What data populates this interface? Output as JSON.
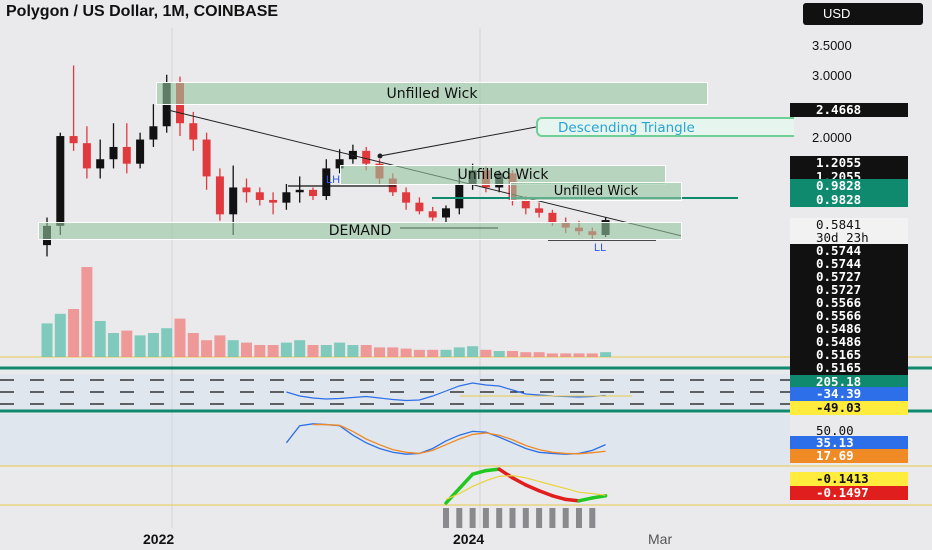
{
  "header": {
    "title": "Polygon / US Dollar, 1M, COINBASE",
    "currency_button": "USD"
  },
  "price_axis": {
    "labels": [
      "3.5000",
      "3.0000",
      "2.0000"
    ]
  },
  "price_tags": [
    {
      "text": "2.4668",
      "style": "dark"
    },
    {
      "text": "1.2055",
      "style": "dark"
    },
    {
      "text": "1.2055",
      "style": "dark"
    },
    {
      "text": "0.9828",
      "style": "teal"
    },
    {
      "text": "0.9828",
      "style": "teal"
    },
    {
      "text": "0.5841",
      "style": "light"
    },
    {
      "text": "30d 23h",
      "style": "light"
    },
    {
      "text": "0.5744",
      "style": "dark"
    },
    {
      "text": "0.5744",
      "style": "dark"
    },
    {
      "text": "0.5727",
      "style": "dark"
    },
    {
      "text": "0.5727",
      "style": "dark"
    },
    {
      "text": "0.5566",
      "style": "dark"
    },
    {
      "text": "0.5566",
      "style": "dark"
    },
    {
      "text": "0.5486",
      "style": "dark"
    },
    {
      "text": "0.5486",
      "style": "dark"
    },
    {
      "text": "0.5165",
      "style": "dark"
    },
    {
      "text": "0.5165",
      "style": "dark"
    }
  ],
  "indicator_tags": [
    {
      "text": "205.18",
      "style": "teal"
    },
    {
      "text": "-34.39",
      "style": "blue"
    },
    {
      "text": "-49.03",
      "style": "yellow"
    },
    {
      "text": "50.00",
      "style": "plain"
    },
    {
      "text": "35.13",
      "style": "blue"
    },
    {
      "text": "17.69",
      "style": "orange"
    },
    {
      "text": "-0.1413",
      "style": "yellow"
    },
    {
      "text": "-0.1497",
      "style": "red"
    }
  ],
  "annotations": {
    "zone_1": "Unfilled Wick",
    "zone_2": "Unfilled Wick",
    "zone_3": "Unfilled Wick",
    "demand_zone": "DEMAND",
    "pattern_callout": "Descending Triangle",
    "marker_lh": "LH",
    "marker_ll": "LL"
  },
  "time_axis": {
    "labels": [
      "2022",
      "2024",
      "Mar"
    ]
  },
  "colors": {
    "bull_candle": "#111111",
    "bear_candle": "#e03a3e",
    "zone_fill": "#94c4a0",
    "volume_up": "#6cc4b4",
    "volume_down": "#f08a8a",
    "teal_line": "#0f8a6e"
  },
  "chart_data": {
    "type": "candlestick",
    "interval": "1M",
    "yscale": "log",
    "series": [
      {
        "name": "price",
        "ohlc": [
          [
            0.45,
            0.6,
            0.4,
            0.55
          ],
          [
            0.55,
            1.45,
            0.5,
            1.4
          ],
          [
            1.4,
            2.92,
            1.2,
            1.3
          ],
          [
            1.3,
            1.55,
            0.9,
            1.0
          ],
          [
            1.0,
            1.35,
            0.9,
            1.1
          ],
          [
            1.1,
            1.6,
            1.0,
            1.25
          ],
          [
            1.25,
            1.6,
            0.95,
            1.05
          ],
          [
            1.05,
            1.45,
            1.0,
            1.35
          ],
          [
            1.35,
            1.95,
            1.25,
            1.55
          ],
          [
            1.55,
            2.65,
            1.45,
            2.45
          ],
          [
            2.45,
            2.6,
            1.4,
            1.6
          ],
          [
            1.6,
            1.8,
            1.2,
            1.35
          ],
          [
            1.35,
            1.45,
            0.8,
            0.92
          ],
          [
            0.92,
            1.0,
            0.58,
            0.62
          ],
          [
            0.62,
            1.03,
            0.5,
            0.82
          ],
          [
            0.82,
            0.9,
            0.7,
            0.78
          ],
          [
            0.78,
            0.82,
            0.68,
            0.72
          ],
          [
            0.72,
            0.78,
            0.62,
            0.7
          ],
          [
            0.7,
            0.85,
            0.65,
            0.78
          ],
          [
            0.78,
            0.92,
            0.7,
            0.8
          ],
          [
            0.8,
            0.82,
            0.72,
            0.75
          ],
          [
            0.75,
            1.1,
            0.72,
            1.0
          ],
          [
            1.0,
            1.22,
            0.95,
            1.1
          ],
          [
            1.1,
            1.28,
            1.05,
            1.2
          ],
          [
            1.2,
            1.25,
            0.98,
            1.05
          ],
          [
            1.05,
            1.1,
            0.85,
            0.9
          ],
          [
            0.9,
            0.95,
            0.75,
            0.78
          ],
          [
            0.78,
            0.82,
            0.65,
            0.7
          ],
          [
            0.7,
            0.74,
            0.62,
            0.64
          ],
          [
            0.64,
            0.67,
            0.58,
            0.6
          ],
          [
            0.6,
            0.68,
            0.57,
            0.66
          ],
          [
            0.66,
            0.94,
            0.62,
            0.85
          ],
          [
            0.85,
            1.05,
            0.8,
            0.98
          ],
          [
            0.98,
            1.02,
            0.78,
            0.82
          ],
          [
            0.82,
            0.98,
            0.78,
            0.95
          ],
          [
            0.95,
            0.98,
            0.68,
            0.72
          ],
          [
            0.72,
            0.75,
            0.62,
            0.66
          ],
          [
            0.66,
            0.7,
            0.6,
            0.63
          ],
          [
            0.63,
            0.65,
            0.55,
            0.57
          ],
          [
            0.57,
            0.6,
            0.51,
            0.54
          ],
          [
            0.54,
            0.58,
            0.5,
            0.52
          ],
          [
            0.52,
            0.54,
            0.48,
            0.5
          ],
          [
            0.5,
            0.6,
            0.49,
            0.5841
          ]
        ]
      },
      {
        "name": "volume",
        "values": [
          28,
          36,
          40,
          75,
          30,
          20,
          22,
          18,
          20,
          24,
          32,
          20,
          14,
          18,
          14,
          12,
          10,
          10,
          12,
          14,
          10,
          10,
          12,
          10,
          10,
          8,
          8,
          7,
          6,
          6,
          6,
          8,
          9,
          6,
          5,
          5,
          4,
          4,
          3,
          3,
          3,
          3,
          4
        ]
      },
      {
        "name": "cci",
        "values": [
          0,
          0,
          0,
          0,
          0,
          0,
          0,
          0,
          0,
          0,
          0,
          0,
          0,
          0,
          0,
          0,
          0,
          0,
          0,
          -40,
          -60,
          -70,
          -65,
          -55,
          -45,
          -60,
          -75,
          -85,
          -80,
          -40,
          10,
          60,
          90,
          70,
          60,
          20,
          -20,
          -30,
          -40,
          -45,
          -50,
          -45,
          -34.39
        ]
      },
      {
        "name": "stoch_k",
        "values": [
          null,
          null,
          null,
          null,
          null,
          null,
          null,
          null,
          null,
          null,
          null,
          null,
          null,
          null,
          null,
          null,
          null,
          null,
          40,
          85,
          90,
          88,
          85,
          60,
          40,
          25,
          15,
          10,
          12,
          25,
          45,
          60,
          70,
          68,
          55,
          40,
          25,
          15,
          12,
          10,
          12,
          20,
          35.13
        ]
      },
      {
        "name": "stoch_d",
        "values": [
          null,
          null,
          null,
          null,
          null,
          null,
          null,
          null,
          null,
          null,
          null,
          null,
          null,
          null,
          null,
          null,
          null,
          null,
          null,
          null,
          88,
          88,
          86,
          70,
          50,
          35,
          22,
          15,
          12,
          20,
          35,
          50,
          62,
          66,
          60,
          48,
          33,
          22,
          15,
          12,
          11,
          14,
          17.69
        ]
      },
      {
        "name": "macd",
        "values": [
          null,
          null,
          null,
          null,
          null,
          null,
          null,
          null,
          null,
          null,
          null,
          null,
          null,
          null,
          null,
          null,
          null,
          null,
          null,
          null,
          null,
          null,
          null,
          null,
          null,
          null,
          null,
          null,
          null,
          null,
          -0.25,
          -0.05,
          0.15,
          0.2,
          0.22,
          0.1,
          0.0,
          -0.08,
          -0.15,
          -0.2,
          -0.22,
          -0.18,
          -0.1497
        ]
      },
      {
        "name": "signal",
        "values": [
          null,
          null,
          null,
          null,
          null,
          null,
          null,
          null,
          null,
          null,
          null,
          null,
          null,
          null,
          null,
          null,
          null,
          null,
          null,
          null,
          null,
          null,
          null,
          null,
          null,
          null,
          null,
          null,
          null,
          null,
          -0.2,
          -0.12,
          -0.02,
          0.06,
          0.12,
          0.13,
          0.1,
          0.05,
          0.0,
          -0.05,
          -0.1,
          -0.12,
          -0.1413
        ]
      }
    ]
  }
}
